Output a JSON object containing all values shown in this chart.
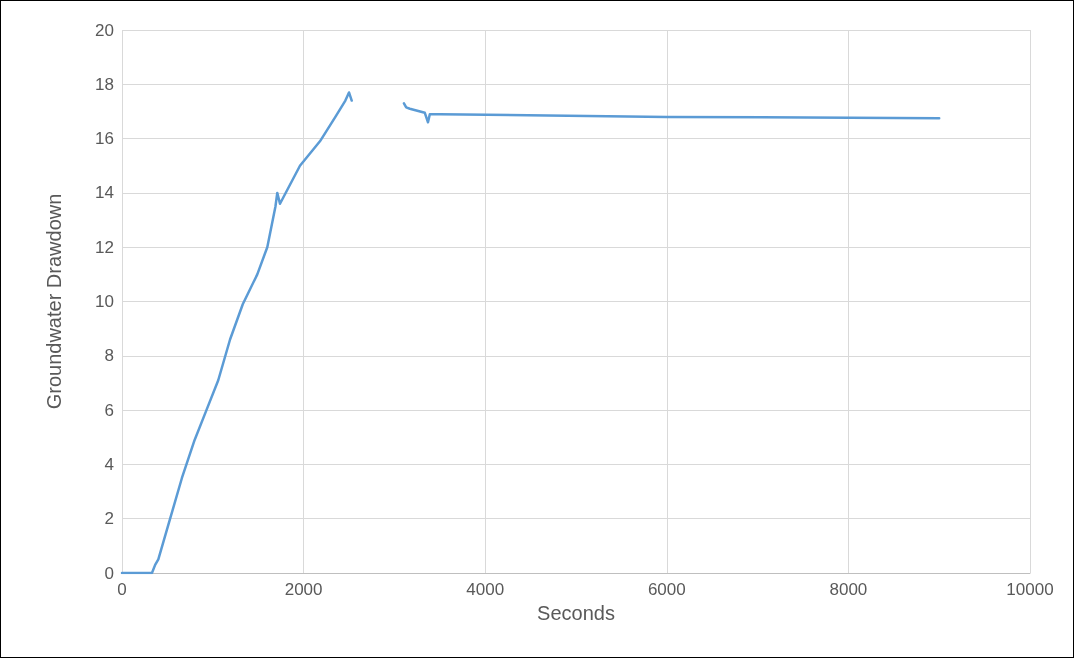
{
  "chart_data": {
    "type": "line",
    "xlabel": "Seconds",
    "ylabel": "Groundwater Drawdown",
    "x": [
      0,
      330,
      365,
      400,
      530,
      660,
      800,
      930,
      1060,
      1190,
      1330,
      1490,
      1600,
      1690,
      1710,
      1740,
      1960,
      2180,
      2350,
      2460,
      2500,
      2530,
      2800,
      3105,
      3130,
      3170,
      3335,
      3370,
      3390,
      3500,
      6000,
      9000
    ],
    "values": [
      0,
      0,
      0.3,
      0.5,
      2,
      3.5,
      4.9,
      6,
      7.1,
      8.6,
      9.9,
      11,
      12,
      13.5,
      14,
      13.6,
      15,
      15.9,
      16.8,
      17.4,
      17.7,
      17.4,
      null,
      17.3,
      17.15,
      17.1,
      16.95,
      16.6,
      16.9,
      16.9,
      16.8,
      16.75
    ],
    "color": "#5b9bd5",
    "marker": "none",
    "line_style": "solid",
    "grid": true,
    "xlim": [
      0,
      10000
    ],
    "xticks": [
      0,
      2000,
      4000,
      6000,
      8000,
      10000
    ],
    "ylim": [
      0,
      20
    ],
    "yticks": [
      0,
      2,
      4,
      6,
      8,
      10,
      12,
      14,
      16,
      18,
      20
    ]
  }
}
